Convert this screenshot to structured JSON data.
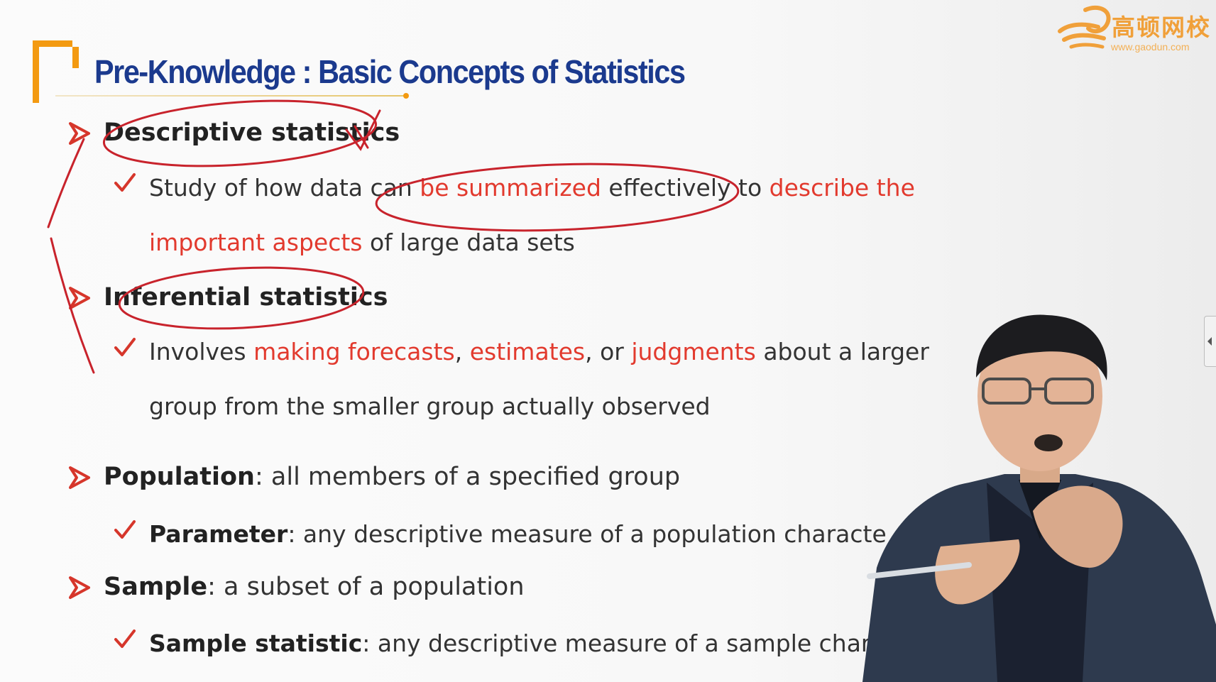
{
  "logo": {
    "name": "高顿网校",
    "url": "www.gaodun.com"
  },
  "slide": {
    "title": "Pre-Knowledge : Basic Concepts of Statistics",
    "items": [
      {
        "heading": "Descriptive statistics",
        "detail_lines": [
          [
            {
              "text": "Study of how data can ",
              "style": "normal"
            },
            {
              "text": "be summarized",
              "style": "red"
            },
            {
              "text": " effectively to ",
              "style": "normal"
            },
            {
              "text": "describe the",
              "style": "red"
            }
          ],
          [
            {
              "text": "important aspects",
              "style": "red"
            },
            {
              "text": " of large data sets",
              "style": "normal"
            }
          ]
        ]
      },
      {
        "heading": "Inferential statistics",
        "detail_lines": [
          [
            {
              "text": "Involves ",
              "style": "normal"
            },
            {
              "text": "making forecasts",
              "style": "red"
            },
            {
              "text": ", ",
              "style": "normal"
            },
            {
              "text": "estimates",
              "style": "red"
            },
            {
              "text": ", or ",
              "style": "normal"
            },
            {
              "text": "judgments",
              "style": "red"
            },
            {
              "text": " about a larger",
              "style": "normal"
            }
          ],
          [
            {
              "text": "group from the smaller group actually observed",
              "style": "normal"
            }
          ]
        ]
      },
      {
        "term": "Population",
        "definition": ": all members of a specified group",
        "sub": {
          "term": "Parameter",
          "definition": ": any descriptive measure of a population characte"
        }
      },
      {
        "term": "Sample",
        "definition": ": a subset of a population",
        "sub": {
          "term": "Sample statistic",
          "definition": ": any descriptive measure of a sample char"
        }
      }
    ]
  },
  "colors": {
    "title": "#1b3a8e",
    "accent_orange": "#f39a11",
    "highlight_red": "#e23a2e",
    "bullet_red": "#d6362b",
    "annotation_red": "#c8232c"
  },
  "icons": {
    "bullet": "red-arrowhead-icon",
    "sub_bullet": "red-checkmark-icon",
    "collapse_tab": "chevron-left-icon"
  }
}
